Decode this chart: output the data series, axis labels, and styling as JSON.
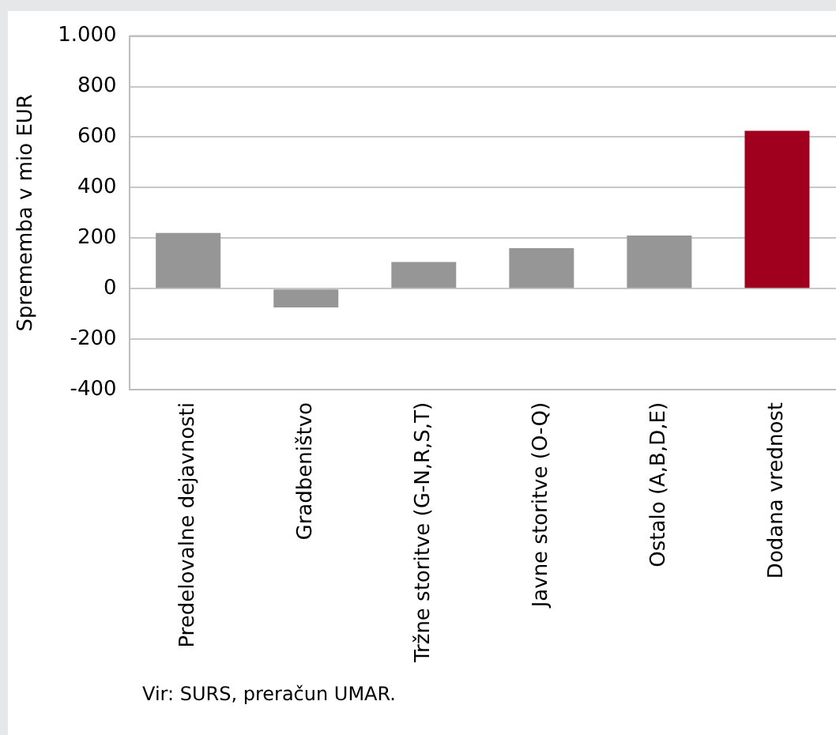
{
  "chart_data": {
    "type": "bar",
    "ylabel": "Sprememba v mio EUR",
    "categories": [
      "Predelovalne dejavnosti",
      "Gradbeništvo",
      "Tržne storitve (G-N,R,S,T)",
      "Javne storitve (O-Q)",
      "Ostalo (A,B,D,E)",
      "Dodana vrednost"
    ],
    "values": [
      220,
      -75,
      105,
      160,
      210,
      625
    ],
    "colors": [
      "#969696",
      "#969696",
      "#969696",
      "#969696",
      "#969696",
      "#a0001e"
    ],
    "ylim": [
      -400,
      1000
    ],
    "yticks": [
      -400,
      -200,
      0,
      200,
      400,
      600,
      800,
      {
        "value": 1000,
        "label": "1.000"
      }
    ],
    "grid": "y",
    "legend": false,
    "annotations": [
      "Vir: SURS, preračun UMAR."
    ]
  }
}
